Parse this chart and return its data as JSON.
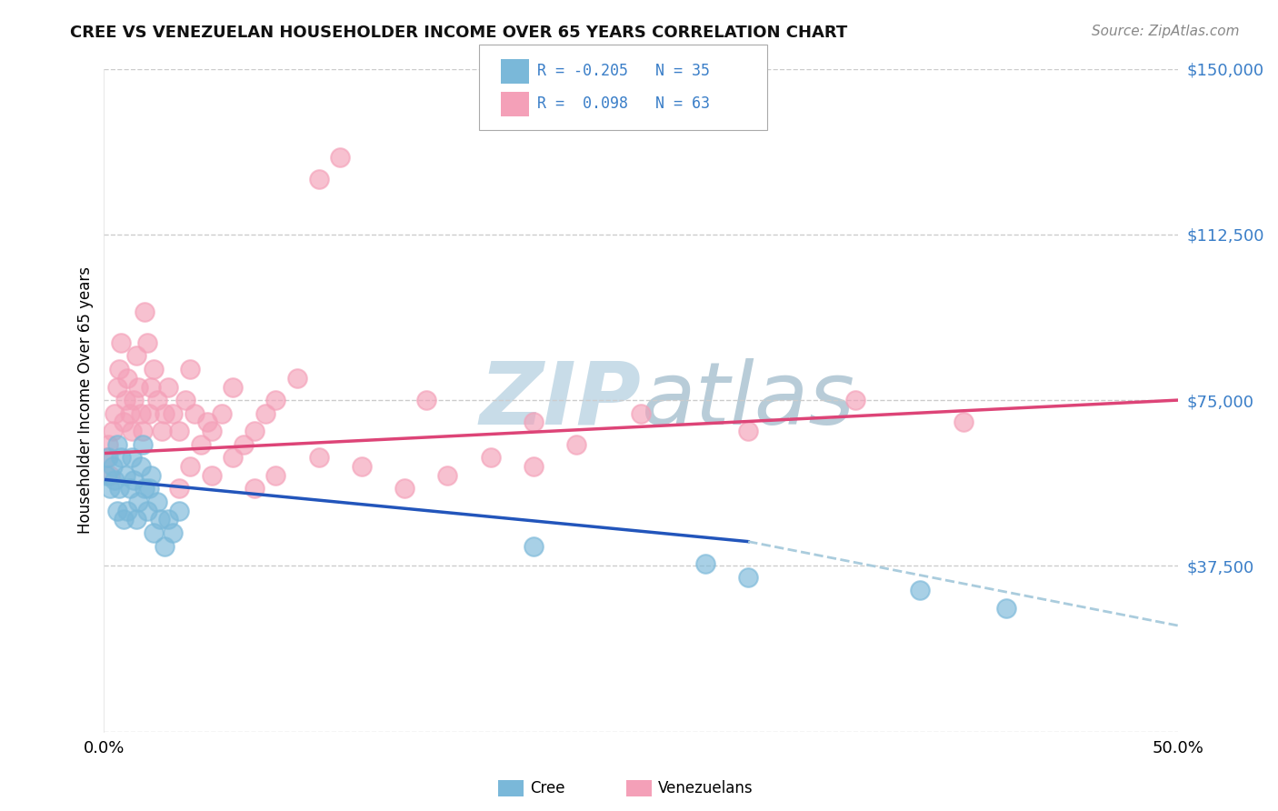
{
  "title": "CREE VS VENEZUELAN HOUSEHOLDER INCOME OVER 65 YEARS CORRELATION CHART",
  "source": "Source: ZipAtlas.com",
  "ylabel": "Householder Income Over 65 years",
  "yticks": [
    0,
    37500,
    75000,
    112500,
    150000
  ],
  "ytick_labels": [
    "",
    "$37,500",
    "$75,000",
    "$112,500",
    "$150,000"
  ],
  "xlim": [
    0.0,
    0.5
  ],
  "ylim": [
    0,
    150000
  ],
  "cree_color": "#7ab8d9",
  "venezuelan_color": "#f4a0b8",
  "trend_blue": "#2255bb",
  "trend_pink": "#dd4477",
  "trend_dashed": "#aaccdd",
  "watermark_zip_color": "#c8dce8",
  "watermark_atlas_color": "#b8ccd8",
  "background_color": "#ffffff",
  "cree_x": [
    0.001,
    0.002,
    0.003,
    0.004,
    0.005,
    0.006,
    0.006,
    0.007,
    0.008,
    0.009,
    0.01,
    0.011,
    0.012,
    0.013,
    0.014,
    0.015,
    0.016,
    0.017,
    0.018,
    0.019,
    0.02,
    0.021,
    0.022,
    0.023,
    0.025,
    0.026,
    0.028,
    0.03,
    0.032,
    0.035,
    0.2,
    0.28,
    0.3,
    0.38,
    0.42
  ],
  "cree_y": [
    58000,
    62000,
    55000,
    60000,
    57000,
    65000,
    50000,
    55000,
    62000,
    48000,
    58000,
    50000,
    55000,
    62000,
    57000,
    48000,
    52000,
    60000,
    65000,
    55000,
    50000,
    55000,
    58000,
    45000,
    52000,
    48000,
    42000,
    48000,
    45000,
    50000,
    42000,
    38000,
    35000,
    32000,
    28000
  ],
  "venezuelan_x": [
    0.001,
    0.002,
    0.003,
    0.004,
    0.005,
    0.006,
    0.007,
    0.008,
    0.009,
    0.01,
    0.011,
    0.012,
    0.013,
    0.014,
    0.015,
    0.016,
    0.017,
    0.018,
    0.019,
    0.02,
    0.021,
    0.022,
    0.023,
    0.025,
    0.027,
    0.028,
    0.03,
    0.032,
    0.035,
    0.038,
    0.04,
    0.042,
    0.045,
    0.048,
    0.05,
    0.055,
    0.06,
    0.065,
    0.07,
    0.075,
    0.08,
    0.09,
    0.1,
    0.11,
    0.15,
    0.2,
    0.25,
    0.3,
    0.35,
    0.4,
    0.035,
    0.04,
    0.05,
    0.06,
    0.07,
    0.08,
    0.1,
    0.12,
    0.14,
    0.16,
    0.18,
    0.2,
    0.22
  ],
  "venezuelan_y": [
    62000,
    65000,
    58000,
    68000,
    72000,
    78000,
    82000,
    88000,
    70000,
    75000,
    80000,
    72000,
    68000,
    75000,
    85000,
    78000,
    72000,
    68000,
    95000,
    88000,
    72000,
    78000,
    82000,
    75000,
    68000,
    72000,
    78000,
    72000,
    68000,
    75000,
    82000,
    72000,
    65000,
    70000,
    68000,
    72000,
    78000,
    65000,
    68000,
    72000,
    75000,
    80000,
    125000,
    130000,
    75000,
    70000,
    72000,
    68000,
    75000,
    70000,
    55000,
    60000,
    58000,
    62000,
    55000,
    58000,
    62000,
    60000,
    55000,
    58000,
    62000,
    60000,
    65000
  ],
  "trend_ven_x0": 0.001,
  "trend_ven_x1": 0.5,
  "trend_ven_y0": 63000,
  "trend_ven_y1": 75000,
  "trend_cree_x0": 0.001,
  "trend_cree_x1": 0.3,
  "trend_cree_y0": 57000,
  "trend_cree_y1": 43000,
  "trend_dash_x0": 0.3,
  "trend_dash_x1": 0.5,
  "trend_dash_y0": 43000,
  "trend_dash_y1": 24000
}
